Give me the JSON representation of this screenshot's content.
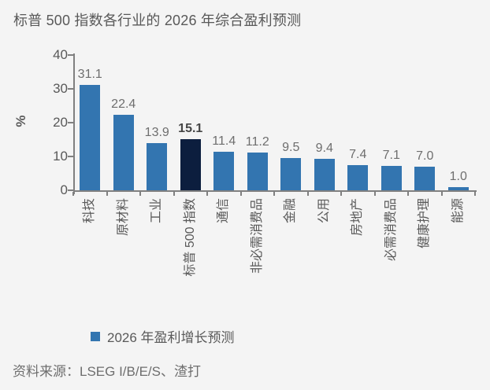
{
  "title": "标普 500 指数各行业的 2026 年综合盈利预测",
  "y_axis": {
    "label": "%",
    "ticks": [
      40,
      30,
      20,
      10,
      0
    ]
  },
  "chart_data": {
    "type": "bar",
    "title": "标普 500 指数各行业的 2026 年综合盈利预测",
    "categories": [
      "科技",
      "原材料",
      "工业",
      "标普 500 指数",
      "通信",
      "非必需消费品",
      "金融",
      "公用",
      "房地产",
      "必需消费品",
      "健康护理",
      "能源"
    ],
    "values": [
      31.1,
      22.4,
      13.9,
      15.1,
      11.4,
      11.2,
      9.5,
      9.4,
      7.4,
      7.1,
      7.0,
      1.0
    ],
    "xlabel": "",
    "ylabel": "%",
    "ylim": [
      0,
      40
    ],
    "grid": false,
    "legend_position": "bottom",
    "highlight_index": 3,
    "bar_color": "#3375B0",
    "highlight_color": "#0C1E3E"
  },
  "legend": {
    "label": "2026 年盈利增长预测",
    "marker_color": "#3375B0"
  },
  "source": "资料来源：LSEG I/B/E/S、渣打",
  "colors": {
    "background": "#F4F4F4",
    "axis": "#808080",
    "tick_label": "#595959",
    "value_label": "#6E6E6E",
    "highlight_value_label": "#454545"
  }
}
